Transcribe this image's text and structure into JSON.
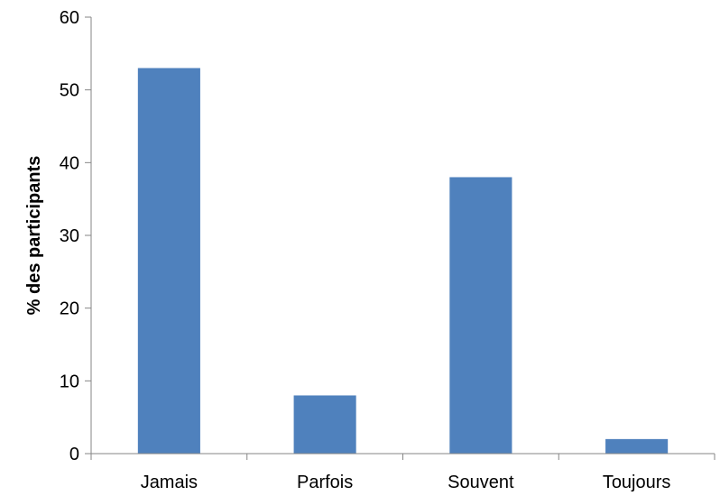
{
  "chart_data": {
    "type": "bar",
    "title": "",
    "xlabel": "",
    "ylabel": "% des participants",
    "categories": [
      "Jamais",
      "Parfois",
      "Souvent",
      "Toujours"
    ],
    "values": [
      53,
      8,
      38,
      2
    ],
    "ylim": [
      0,
      60
    ],
    "yticks": [
      0,
      10,
      20,
      30,
      40,
      50,
      60
    ],
    "grid": false,
    "legend": "none",
    "bar_color": "#4f81bd",
    "axis_color": "#868686"
  }
}
